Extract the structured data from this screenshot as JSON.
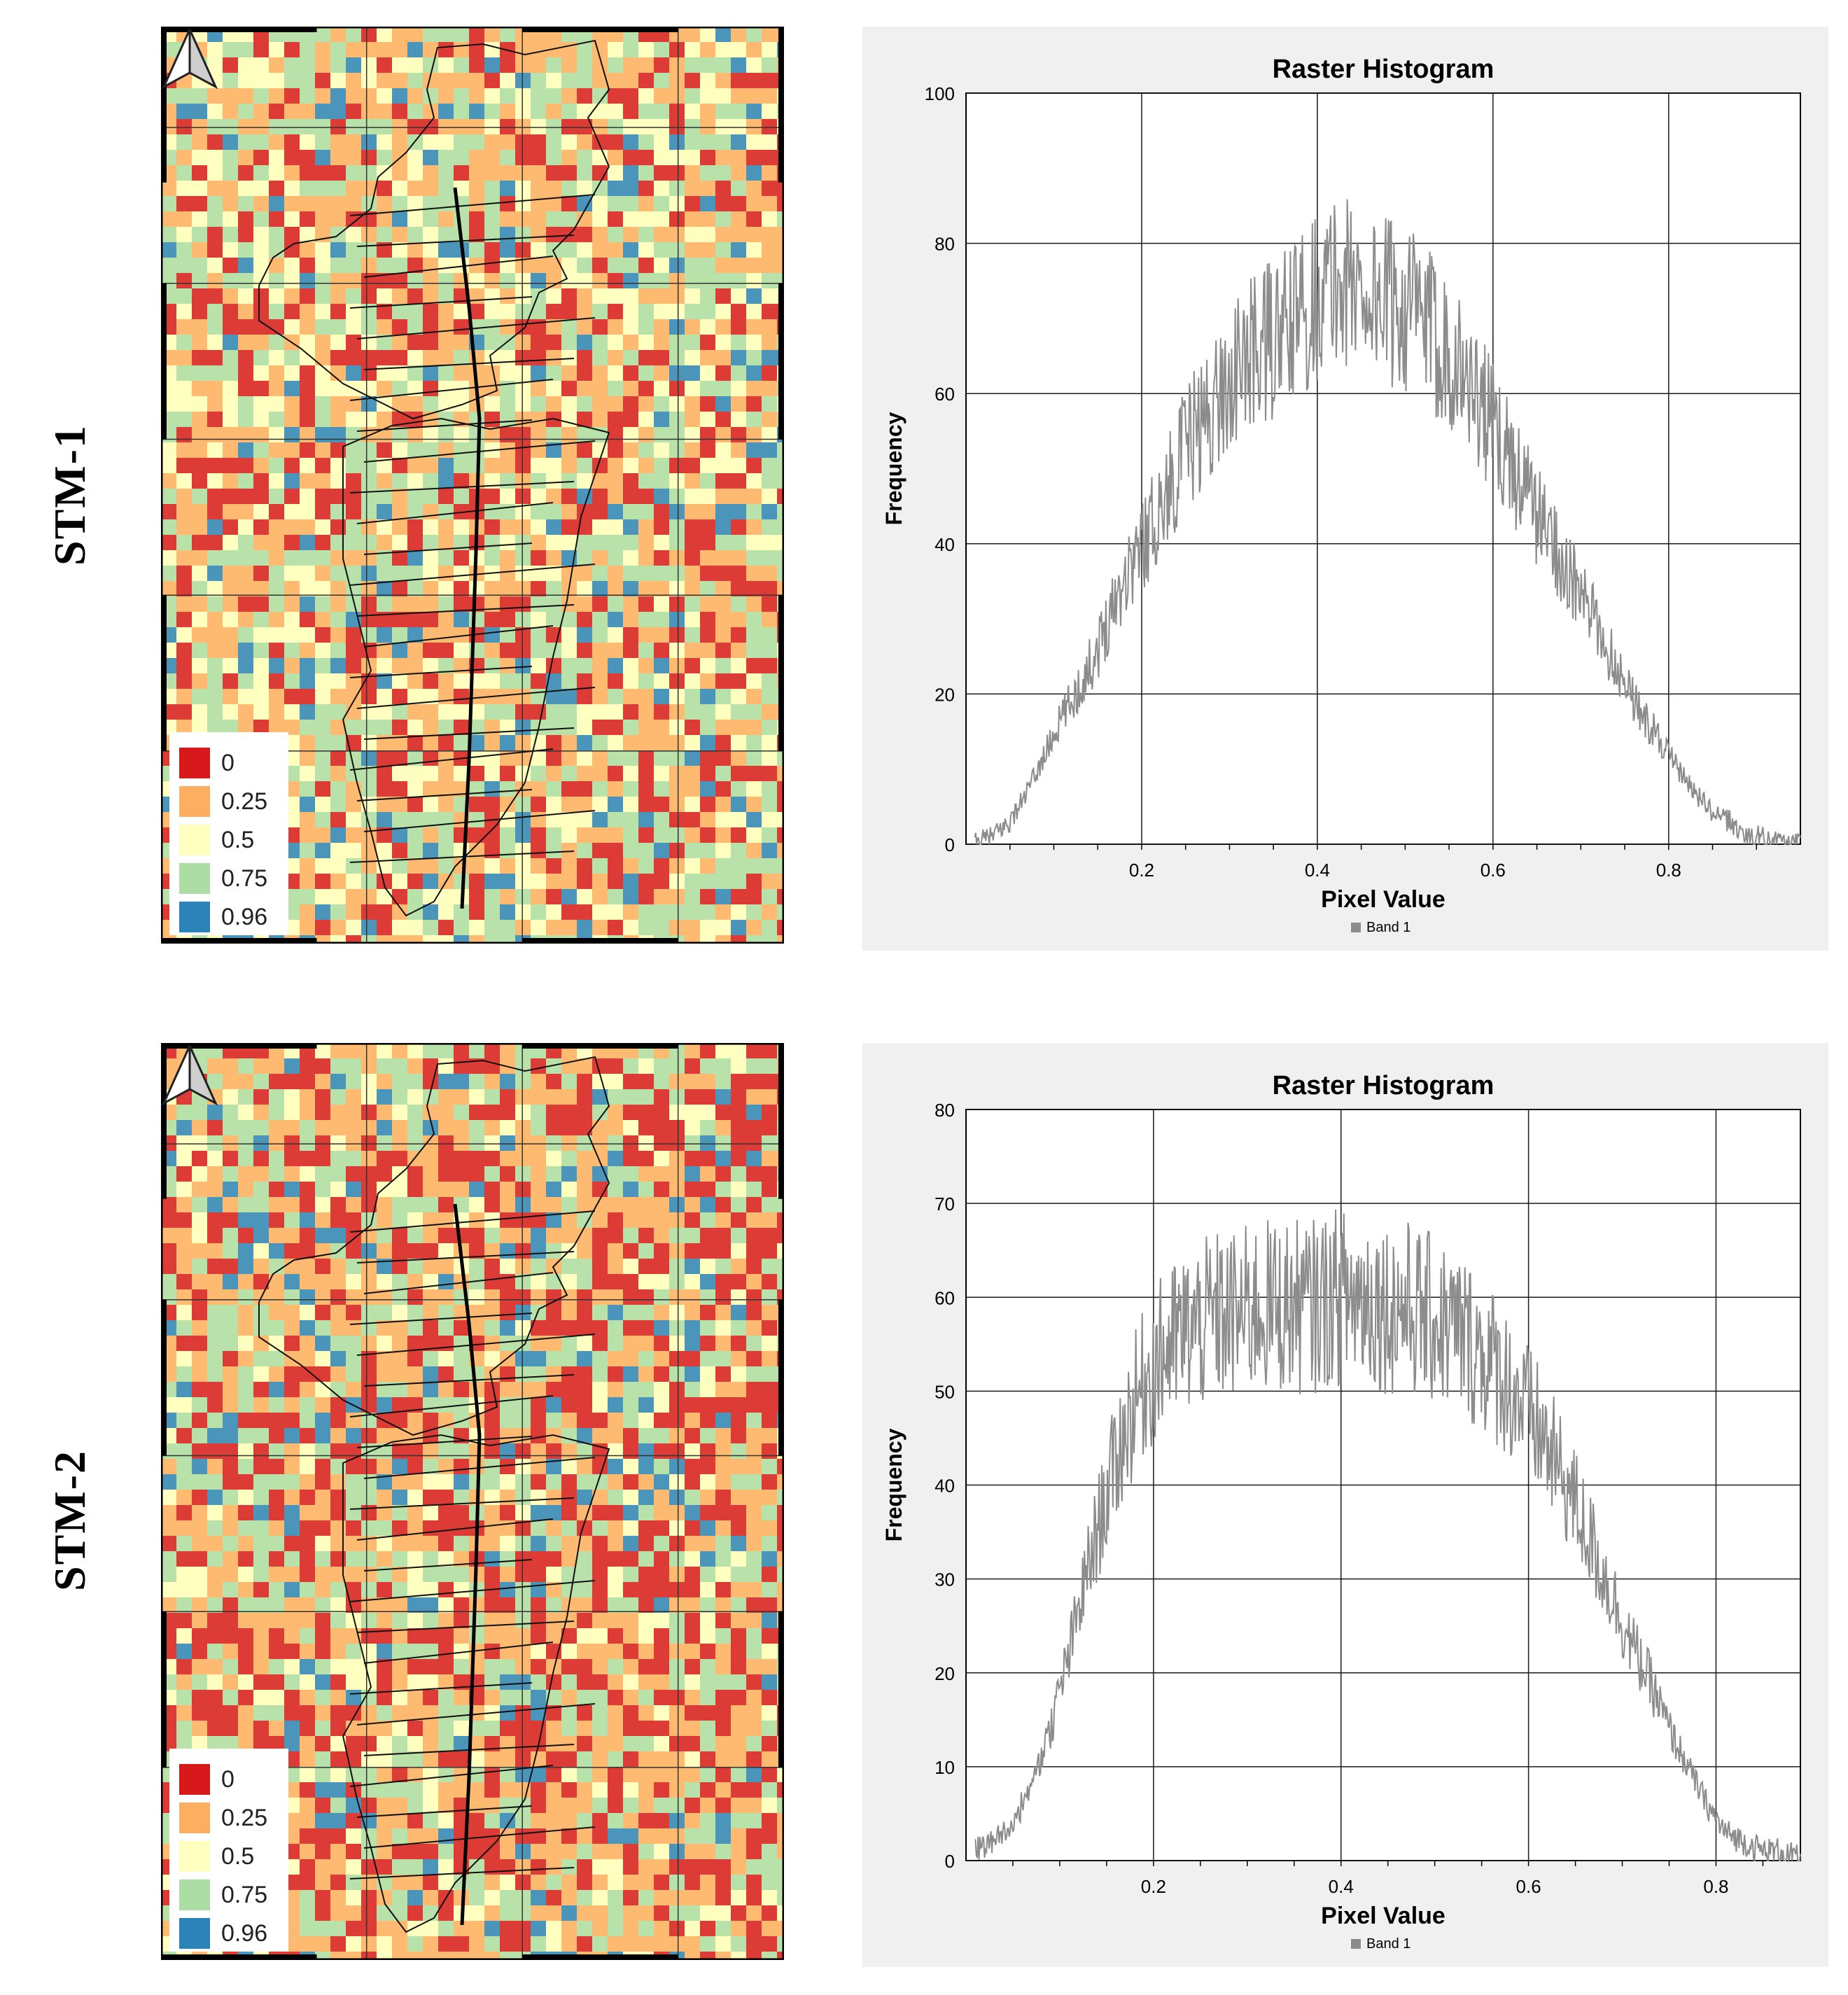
{
  "figure": {
    "rows": [
      {
        "label": "STM-1"
      },
      {
        "label": "STM-2"
      }
    ]
  },
  "legend": {
    "items": [
      {
        "label": "0",
        "color": "#d7191c"
      },
      {
        "label": "0.25",
        "color": "#fdae61"
      },
      {
        "label": "0.5",
        "color": "#ffffbf"
      },
      {
        "label": "0.75",
        "color": "#abdda4"
      },
      {
        "label": "0.96",
        "color": "#2b83ba"
      }
    ]
  },
  "colors": {
    "histogram_line": "#8c8c8c",
    "panel_bg": "#f0f0f0",
    "grid": "#1a1a1a"
  },
  "chart_data": [
    {
      "type": "line",
      "title": "Raster Histogram",
      "xlabel": "Pixel Value",
      "ylabel": "Frequency",
      "legend": [
        "Band 1"
      ],
      "xlim": [
        0.0,
        0.95
      ],
      "ylim": [
        0,
        100
      ],
      "xticks": [
        0.2,
        0.4,
        0.6,
        0.8
      ],
      "yticks": [
        0,
        20,
        40,
        60,
        80,
        100
      ],
      "grid": true,
      "series": [
        {
          "name": "Band 1",
          "x": [
            0.01,
            0.03,
            0.05,
            0.07,
            0.09,
            0.11,
            0.13,
            0.15,
            0.17,
            0.19,
            0.21,
            0.23,
            0.25,
            0.27,
            0.29,
            0.31,
            0.33,
            0.35,
            0.37,
            0.39,
            0.41,
            0.43,
            0.45,
            0.47,
            0.49,
            0.51,
            0.53,
            0.55,
            0.57,
            0.59,
            0.61,
            0.63,
            0.65,
            0.67,
            0.69,
            0.71,
            0.73,
            0.75,
            0.77,
            0.79,
            0.81,
            0.83,
            0.85,
            0.87,
            0.89,
            0.91,
            0.93,
            0.95
          ],
          "values": [
            0,
            1,
            3,
            7,
            12,
            17,
            21,
            26,
            33,
            38,
            42,
            47,
            53,
            56,
            60,
            63,
            66,
            67,
            69,
            72,
            74,
            75,
            74,
            73,
            72,
            71,
            68,
            66,
            62,
            58,
            53,
            49,
            44,
            40,
            35,
            31,
            26,
            22,
            17,
            14,
            10,
            7,
            4,
            3,
            1,
            1,
            0,
            0
          ]
        }
      ]
    },
    {
      "type": "line",
      "title": "Raster Histogram",
      "xlabel": "Pixel Value",
      "ylabel": "Frequency",
      "legend": [
        "Band 1"
      ],
      "xlim": [
        0.0,
        0.89
      ],
      "ylim": [
        0,
        80
      ],
      "xticks": [
        0.2,
        0.4,
        0.6,
        0.8
      ],
      "yticks": [
        0,
        10,
        20,
        30,
        40,
        50,
        60,
        70,
        80
      ],
      "grid": true,
      "series": [
        {
          "name": "Band 1",
          "x": [
            0.01,
            0.03,
            0.05,
            0.07,
            0.09,
            0.11,
            0.13,
            0.15,
            0.17,
            0.19,
            0.21,
            0.23,
            0.25,
            0.27,
            0.29,
            0.31,
            0.33,
            0.35,
            0.37,
            0.39,
            0.41,
            0.43,
            0.45,
            0.47,
            0.49,
            0.51,
            0.53,
            0.55,
            0.57,
            0.59,
            0.61,
            0.63,
            0.65,
            0.67,
            0.69,
            0.71,
            0.73,
            0.75,
            0.77,
            0.79,
            0.81,
            0.83,
            0.85,
            0.87,
            0.89
          ],
          "values": [
            1,
            2,
            4,
            8,
            14,
            22,
            31,
            39,
            46,
            51,
            54,
            56,
            57,
            58,
            58,
            59,
            59,
            59,
            59,
            60,
            60,
            60,
            59,
            59,
            58,
            57,
            56,
            54,
            52,
            49,
            46,
            42,
            38,
            33,
            28,
            23,
            19,
            14,
            10,
            6,
            3,
            2,
            1,
            1,
            0
          ]
        }
      ]
    }
  ]
}
